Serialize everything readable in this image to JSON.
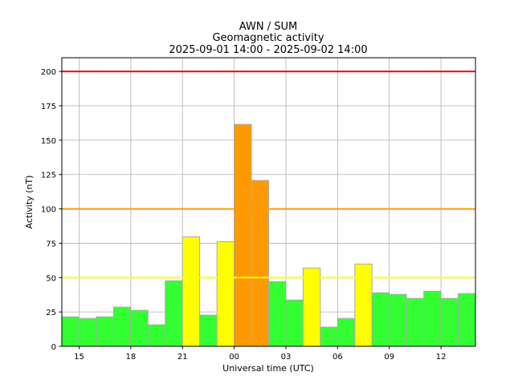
{
  "chart_data": {
    "type": "bar",
    "title_lines": [
      "AWN / SUM",
      "Geomagnetic activity",
      "2025-09-01 14:00 - 2025-09-02 14:00"
    ],
    "xlabel": "Universal time (UTC)",
    "ylabel": "Activity (nT)",
    "ylim": [
      0,
      210
    ],
    "yticks": [
      0,
      25,
      50,
      75,
      100,
      125,
      150,
      175,
      200
    ],
    "xticks": [
      {
        "hour": 15,
        "label": "15"
      },
      {
        "hour": 18,
        "label": "18"
      },
      {
        "hour": 21,
        "label": "21"
      },
      {
        "hour": 24,
        "label": "00"
      },
      {
        "hour": 27,
        "label": "03"
      },
      {
        "hour": 30,
        "label": "06"
      },
      {
        "hour": 33,
        "label": "09"
      },
      {
        "hour": 36,
        "label": "12"
      }
    ],
    "xlim_hours": [
      14,
      38
    ],
    "grid": true,
    "bar_start_hour": 14,
    "values": [
      21.5,
      20.3,
      21.5,
      28.5,
      26.2,
      15.7,
      47.7,
      79.7,
      22.7,
      76.2,
      161.5,
      120.7,
      47.1,
      33.7,
      57.0,
      14.0,
      20.3,
      59.9,
      39.0,
      37.8,
      34.9,
      40.1,
      34.9,
      38.4
    ],
    "thresholds": [
      {
        "value": 50,
        "color": "#ffff00"
      },
      {
        "value": 100,
        "color": "#ff9900"
      },
      {
        "value": 200,
        "color": "#ff0000"
      }
    ],
    "bar_colors": {
      "low": "#33ff33",
      "medium": "#ffff00",
      "high": "#ff9900"
    }
  }
}
